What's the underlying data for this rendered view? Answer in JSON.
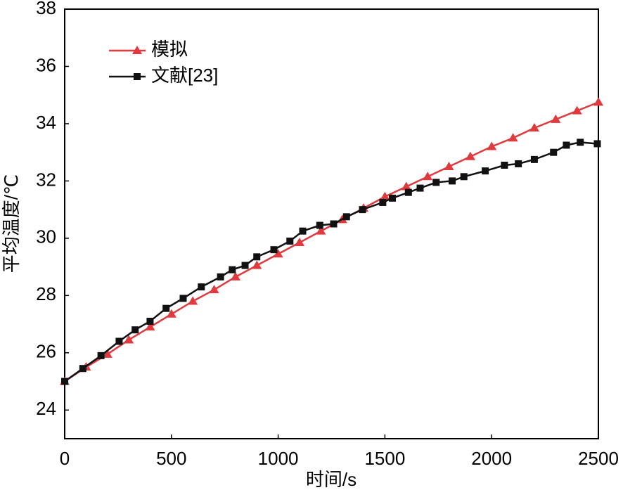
{
  "chart_data": {
    "type": "line",
    "xlabel": "时间/s",
    "ylabel": "平均温度/℃",
    "xlim": [
      0,
      2500
    ],
    "ylim": [
      23,
      38
    ],
    "xticks": [
      0,
      500,
      1000,
      1500,
      2000,
      2500
    ],
    "yticks": [
      24,
      26,
      28,
      30,
      32,
      34,
      36,
      38
    ],
    "legend": "upper left",
    "series": [
      {
        "name": "模拟",
        "color": "#e0393e",
        "marker": "triangle",
        "x": [
          0,
          100,
          200,
          300,
          400,
          500,
          600,
          700,
          800,
          900,
          1000,
          1100,
          1200,
          1300,
          1400,
          1500,
          1600,
          1700,
          1800,
          1900,
          2000,
          2100,
          2200,
          2300,
          2400,
          2500
        ],
        "values": [
          25.0,
          25.5,
          25.95,
          26.45,
          26.9,
          27.35,
          27.8,
          28.2,
          28.65,
          29.05,
          29.45,
          29.85,
          30.25,
          30.65,
          31.05,
          31.45,
          31.8,
          32.15,
          32.5,
          32.85,
          33.2,
          33.5,
          33.85,
          34.15,
          34.45,
          34.75
        ]
      },
      {
        "name": "文献[23]",
        "color": "#111111",
        "marker": "square",
        "x": [
          0,
          85,
          170,
          255,
          330,
          400,
          475,
          555,
          640,
          730,
          785,
          845,
          900,
          980,
          1055,
          1115,
          1195,
          1260,
          1320,
          1395,
          1490,
          1535,
          1610,
          1665,
          1740,
          1815,
          1870,
          1970,
          2060,
          2125,
          2200,
          2290,
          2350,
          2415,
          2495
        ],
        "values": [
          25.0,
          25.45,
          25.9,
          26.4,
          26.8,
          27.1,
          27.55,
          27.9,
          28.3,
          28.65,
          28.9,
          29.05,
          29.35,
          29.6,
          29.9,
          30.25,
          30.45,
          30.5,
          30.75,
          31.0,
          31.25,
          31.4,
          31.6,
          31.75,
          31.95,
          32.0,
          32.15,
          32.35,
          32.55,
          32.6,
          32.75,
          33.0,
          33.25,
          33.35,
          33.3
        ]
      }
    ]
  }
}
